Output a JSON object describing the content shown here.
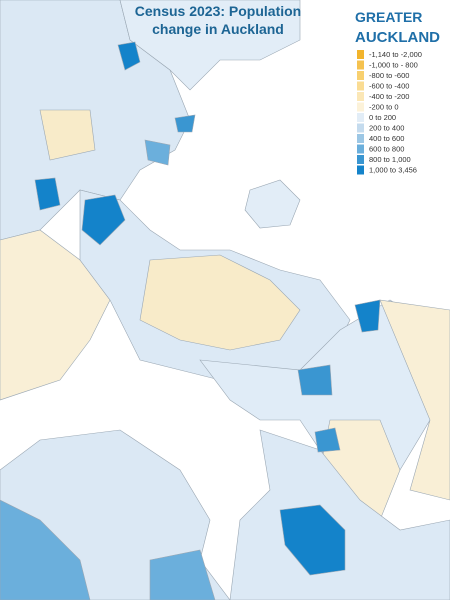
{
  "title": [
    "Census 2023: Population",
    "change in Auckland"
  ],
  "logo": [
    "GREATER",
    "AUCKLAND"
  ],
  "legend": [
    {
      "label": "-1,140 to -2,000",
      "color": "#f2b42c"
    },
    {
      "label": "-1,000 to - 800",
      "color": "#f5c24f"
    },
    {
      "label": "-800 to -600",
      "color": "#f8d06f"
    },
    {
      "label": "-600 to -400",
      "color": "#fadc93"
    },
    {
      "label": "-400 to -200",
      "color": "#fbe7b6"
    },
    {
      "label": "-200 to 0",
      "color": "#fcf2d9"
    },
    {
      "label": "0 to 200",
      "color": "#e2edf7"
    },
    {
      "label": "200 to 400",
      "color": "#c4dbee"
    },
    {
      "label": "400 to 600",
      "color": "#9cc7e5"
    },
    {
      "label": "600 to 800",
      "color": "#6bafdc"
    },
    {
      "label": "800 to 1,000",
      "color": "#3a96d1"
    },
    {
      "label": "1,000 to 3,456",
      "color": "#1483ca"
    }
  ]
}
